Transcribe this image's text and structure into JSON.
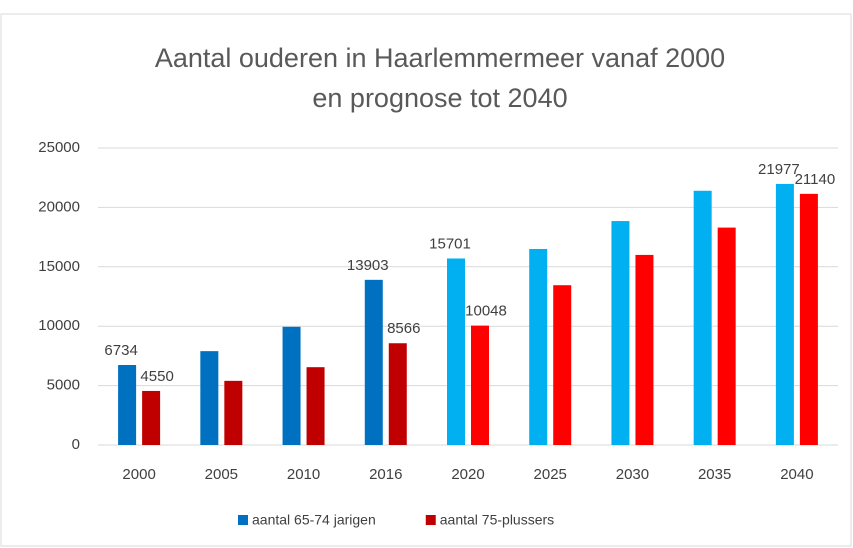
{
  "chart_data": {
    "type": "bar",
    "title": [
      "Aantal ouderen in Haarlemmermeer vanaf 2000",
      "en prognose tot 2040"
    ],
    "categories": [
      "2000",
      "2005",
      "2010",
      "2016",
      "2020",
      "2025",
      "2030",
      "2035",
      "2040"
    ],
    "series": [
      {
        "name": "aantal 65-74 jarigen",
        "color": "#0070c0",
        "colors": [
          "#0070c0",
          "#0070c0",
          "#0070c0",
          "#0070c0",
          "#00b0f0",
          "#00b0f0",
          "#00b0f0",
          "#00b0f0",
          "#00b0f0"
        ],
        "values": [
          6734,
          7900,
          9950,
          13903,
          15701,
          16500,
          18850,
          21400,
          21977
        ],
        "value_labels": [
          "6734",
          null,
          null,
          "13903",
          "15701",
          null,
          null,
          null,
          "21977"
        ]
      },
      {
        "name": "aantal 75-plussers",
        "color": "#c00000",
        "colors": [
          "#c00000",
          "#c00000",
          "#c00000",
          "#c00000",
          "#ff0000",
          "#ff0000",
          "#ff0000",
          "#ff0000",
          "#ff0000"
        ],
        "values": [
          4550,
          5400,
          6550,
          8566,
          10048,
          13450,
          16000,
          18300,
          21140
        ],
        "value_labels": [
          "4550",
          null,
          null,
          "8566",
          "10048",
          null,
          null,
          null,
          "21140"
        ]
      }
    ],
    "ylim": [
      0,
      25000
    ],
    "yticks": [
      0,
      5000,
      10000,
      15000,
      20000,
      25000
    ],
    "grid": true,
    "legend": "bottom"
  }
}
